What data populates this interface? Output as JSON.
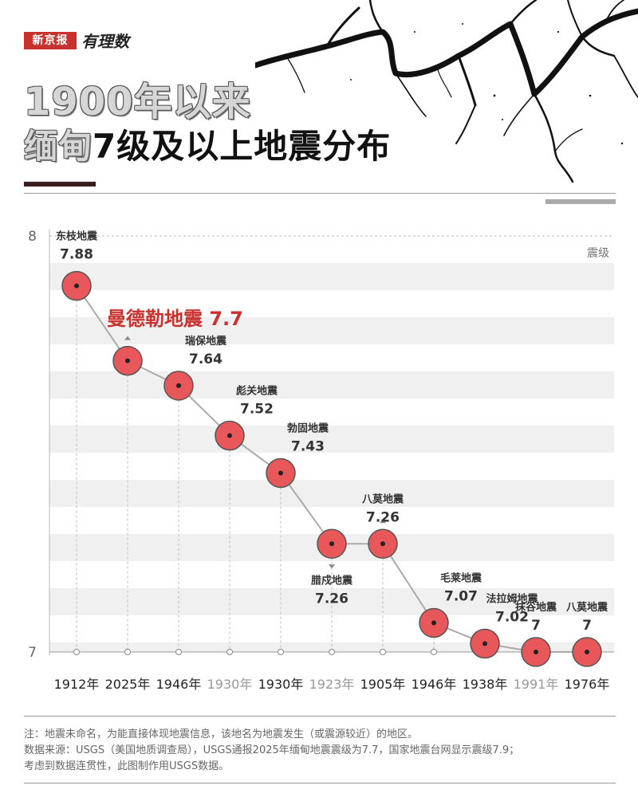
{
  "brand": {
    "name": "新京报",
    "sub": "有理数"
  },
  "title": {
    "line1": "1900年以来",
    "line2_outline": "缅甸",
    "line2_solid": "7级及以上地震分布"
  },
  "colors": {
    "accent": "#c8312d",
    "dot_fill": "#e8575a",
    "dot_stroke": "#555555",
    "line": "#aaaaaa",
    "band": "#f0f0f0"
  },
  "chart_data": {
    "type": "line",
    "ylabel": "震级",
    "ylim": [
      7,
      8
    ],
    "yticks": [
      "8",
      "7"
    ],
    "categories": [
      "1912年",
      "2025年",
      "1946年",
      "1930年",
      "1930年",
      "1923年",
      "1905年",
      "1946年",
      "1938年",
      "1991年",
      "1976年"
    ],
    "points": [
      {
        "name": "东枝地震",
        "value": 7.88,
        "label": "7.88",
        "pos": "above"
      },
      {
        "name": "",
        "value": 7.7,
        "label": "",
        "pos": "none"
      },
      {
        "name": "瑞保地震",
        "value": 7.64,
        "label": "7.64",
        "pos": "above-right"
      },
      {
        "name": "彪关地震",
        "value": 7.52,
        "label": "7.52",
        "pos": "above-right"
      },
      {
        "name": "勃固地震",
        "value": 7.43,
        "label": "7.43",
        "pos": "above-right"
      },
      {
        "name": "腊戍地震",
        "value": 7.26,
        "label": "7.26",
        "pos": "below"
      },
      {
        "name": "八莫地震",
        "value": 7.26,
        "label": "7.26",
        "pos": "above"
      },
      {
        "name": "毛莱地震",
        "value": 7.07,
        "label": "7.07",
        "pos": "above-right"
      },
      {
        "name": "法拉姆地震",
        "value": 7.02,
        "label": "7.02",
        "pos": "above-right"
      },
      {
        "name": "抹谷地震",
        "value": 7,
        "label": "7",
        "pos": "above"
      },
      {
        "name": "八莫地震",
        "value": 7,
        "label": "7",
        "pos": "above"
      }
    ],
    "highlight": {
      "text": "曼德勒地震  7.7",
      "index": 1
    },
    "gray_categories": [
      3,
      5,
      9
    ],
    "marker_pointers": [
      1,
      5,
      6
    ]
  },
  "notes": [
    "注：地震未命名，为能直接体现地震信息，该地名为地震发生（或震源较近）的地区。",
    "数据来源：USGS（美国地质调查局），USGS通报2025年缅甸地震震级为7.7，国家地震台网显示震级7.9；",
    "考虑到数据连贯性，此图制作用USGS数据。"
  ]
}
